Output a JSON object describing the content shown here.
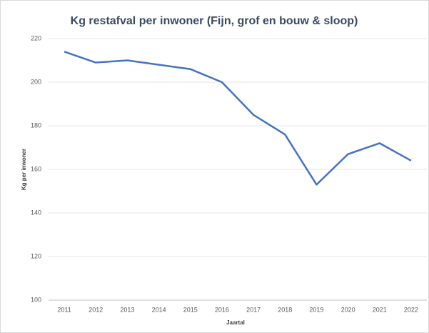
{
  "chart_data": {
    "type": "line",
    "title": "Kg restafval per inwoner (Fijn, grof en bouw & sloop)",
    "x_label": "Jaartal",
    "y_label": "Kg per inwoner",
    "categories": [
      "2011",
      "2012",
      "2013",
      "2014",
      "2015",
      "2016",
      "2017",
      "2018",
      "2019",
      "2020",
      "2021",
      "2022"
    ],
    "series": [
      {
        "name": "Kg restafval per inwoner",
        "color": "#4472c4",
        "values": [
          214,
          209,
          210,
          208,
          206,
          200,
          185,
          176,
          153,
          167,
          172,
          164
        ]
      }
    ],
    "ylim": [
      100,
      220
    ],
    "yticks": [
      100,
      120,
      140,
      160,
      180,
      200,
      220
    ],
    "grid": true
  }
}
